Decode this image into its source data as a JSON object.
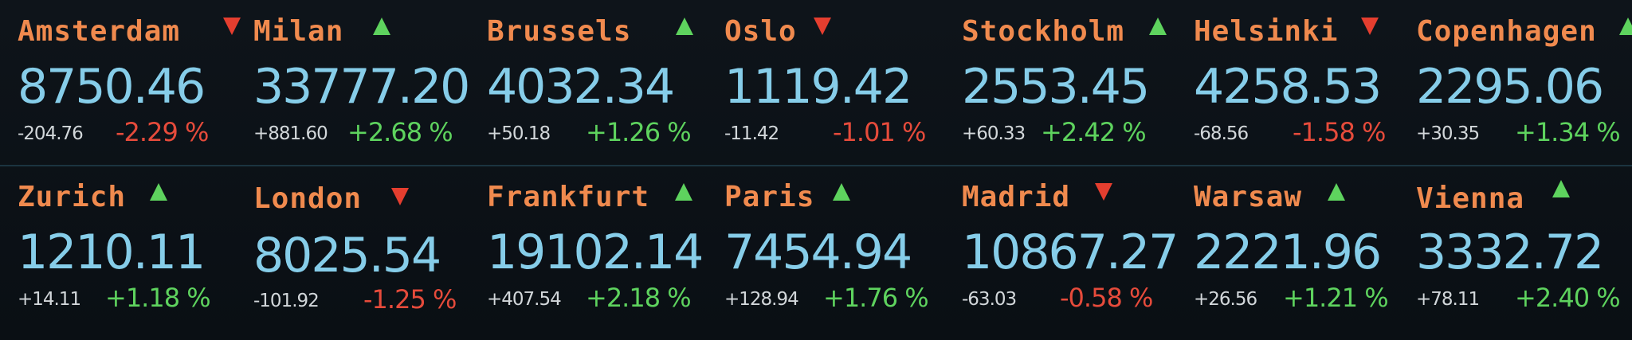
{
  "colors": {
    "background": "#0c1116",
    "city": "#f08a4e",
    "price": "#86cde9",
    "change": "#d2d7da",
    "up": "#5ed35e",
    "down": "#e64b3b"
  },
  "rows": [
    {
      "tickers": [
        {
          "city": "Amsterdam",
          "trend": "down",
          "price": "8750.46",
          "change": "-204.76",
          "pct": "-2.29 %"
        },
        {
          "city": "Milan",
          "trend": "up",
          "price": "33777.20",
          "change": "+881.60",
          "pct": "+2.68 %"
        },
        {
          "city": "Brussels",
          "trend": "up",
          "price": "4032.34",
          "change": "+50.18",
          "pct": "+1.26 %"
        },
        {
          "city": "Oslo",
          "trend": "down",
          "price": "1119.42",
          "change": "-11.42",
          "pct": "-1.01 %"
        },
        {
          "city": "Stockholm",
          "trend": "up",
          "price": "2553.45",
          "change": "+60.33",
          "pct": "+2.42 %"
        },
        {
          "city": "Helsinki",
          "trend": "down",
          "price": "4258.53",
          "change": "-68.56",
          "pct": "-1.58 %"
        },
        {
          "city": "Copenhagen",
          "trend": "up",
          "price": "2295.06",
          "change": "+30.35",
          "pct": "+1.34 %"
        }
      ]
    },
    {
      "tickers": [
        {
          "city": "Zurich",
          "trend": "up",
          "price": "1210.11",
          "change": "+14.11",
          "pct": "+1.18 %"
        },
        {
          "city": "London",
          "trend": "down",
          "price": "8025.54",
          "change": "-101.92",
          "pct": "-1.25 %"
        },
        {
          "city": "Frankfurt",
          "trend": "up",
          "price": "19102.14",
          "change": "+407.54",
          "pct": "+2.18 %"
        },
        {
          "city": "Paris",
          "trend": "up",
          "price": "7454.94",
          "change": "+128.94",
          "pct": "+1.76 %"
        },
        {
          "city": "Madrid",
          "trend": "down",
          "price": "10867.27",
          "change": "-63.03",
          "pct": "-0.58 %"
        },
        {
          "city": "Warsaw",
          "trend": "up",
          "price": "2221.96",
          "change": "+26.56",
          "pct": "+1.21 %"
        },
        {
          "city": "Vienna",
          "trend": "up",
          "price": "3332.72",
          "change": "+78.11",
          "pct": "+2.40 %"
        }
      ]
    }
  ]
}
